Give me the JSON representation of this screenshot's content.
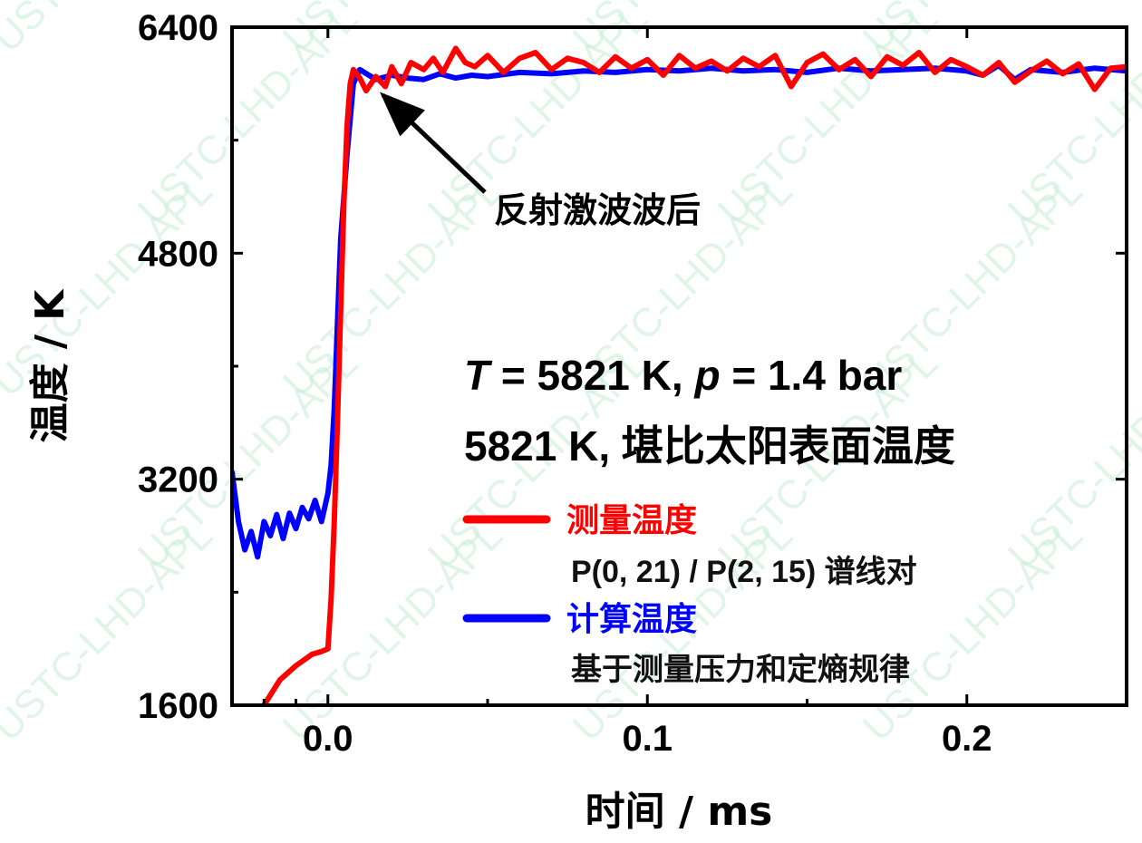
{
  "watermark": "USTC-LHD-APL",
  "chart_data": {
    "type": "line",
    "xlabel": "时间 / ms",
    "ylabel": "温度 / K",
    "xlim": [
      -0.03,
      0.25
    ],
    "ylim": [
      1600,
      6400
    ],
    "xticks": [
      0.0,
      0.1,
      0.2
    ],
    "xtick_labels": [
      "0.0",
      "0.1",
      "0.2"
    ],
    "yticks": [
      1600,
      3200,
      4800,
      6400
    ],
    "ytick_labels": [
      "1600",
      "3200",
      "4800",
      "6400"
    ],
    "grid": false,
    "legend_position": "lower-right",
    "annotations": {
      "arrow_text": "反射激波波后",
      "arrow_target": [
        0.015,
        5970
      ],
      "condition_line1_var1": "T",
      "condition_line1_mid": " = 5821 K, ",
      "condition_line1_var2": "p",
      "condition_line1_end": " = 1.4 bar",
      "condition_line2": "5821 K, 堪比太阳表面温度"
    },
    "series": [
      {
        "name": "测量温度",
        "note": "P(0, 21) / P(2, 15) 谱线对",
        "color": "#ff0000",
        "x": [
          -0.02,
          -0.015,
          -0.01,
          -0.005,
          -0.002,
          0.0,
          0.001,
          0.002,
          0.003,
          0.004,
          0.005,
          0.006,
          0.007,
          0.008,
          0.01,
          0.012,
          0.015,
          0.018,
          0.02,
          0.023,
          0.026,
          0.03,
          0.033,
          0.036,
          0.04,
          0.043,
          0.046,
          0.05,
          0.055,
          0.06,
          0.065,
          0.07,
          0.075,
          0.08,
          0.085,
          0.09,
          0.095,
          0.1,
          0.105,
          0.11,
          0.115,
          0.12,
          0.125,
          0.13,
          0.135,
          0.14,
          0.145,
          0.15,
          0.155,
          0.16,
          0.165,
          0.17,
          0.175,
          0.18,
          0.185,
          0.19,
          0.195,
          0.2,
          0.205,
          0.21,
          0.215,
          0.22,
          0.225,
          0.23,
          0.235,
          0.24,
          0.245,
          0.25
        ],
        "y": [
          1600,
          1780,
          1880,
          1960,
          1980,
          2000,
          2350,
          2900,
          3600,
          4400,
          5150,
          5700,
          6000,
          6100,
          6040,
          5950,
          6050,
          5980,
          6120,
          6000,
          6150,
          6100,
          6180,
          6080,
          6250,
          6150,
          6120,
          6200,
          6080,
          6180,
          6220,
          6100,
          6180,
          6150,
          6080,
          6190,
          6110,
          6170,
          6060,
          6200,
          6110,
          6160,
          6090,
          6180,
          6120,
          6200,
          5980,
          6150,
          6210,
          6100,
          6170,
          6050,
          6190,
          6130,
          6220,
          6080,
          6170,
          6120,
          6060,
          6150,
          6010,
          6090,
          6160,
          6070,
          6140,
          5960,
          6110,
          6120
        ]
      },
      {
        "name": "计算温度",
        "note": "基于测量压力和定熵规律",
        "color": "#0000ff",
        "x": [
          -0.03,
          -0.028,
          -0.026,
          -0.024,
          -0.022,
          -0.02,
          -0.018,
          -0.016,
          -0.014,
          -0.012,
          -0.01,
          -0.008,
          -0.006,
          -0.004,
          -0.002,
          0.0,
          0.001,
          0.002,
          0.003,
          0.004,
          0.006,
          0.008,
          0.01,
          0.015,
          0.02,
          0.025,
          0.03,
          0.035,
          0.04,
          0.045,
          0.05,
          0.06,
          0.07,
          0.08,
          0.09,
          0.1,
          0.11,
          0.12,
          0.13,
          0.14,
          0.15,
          0.16,
          0.17,
          0.18,
          0.19,
          0.2,
          0.205,
          0.21,
          0.215,
          0.22,
          0.23,
          0.24,
          0.25
        ],
        "y": [
          3250,
          2900,
          2700,
          2830,
          2650,
          2900,
          2800,
          2950,
          2780,
          2960,
          2850,
          3000,
          2920,
          3050,
          2900,
          3100,
          3300,
          3700,
          4300,
          4900,
          5500,
          6000,
          6100,
          6030,
          6060,
          6040,
          6030,
          6070,
          6040,
          6060,
          6050,
          6080,
          6070,
          6090,
          6080,
          6100,
          6090,
          6110,
          6090,
          6100,
          6080,
          6110,
          6090,
          6100,
          6110,
          6090,
          6060,
          6130,
          6030,
          6100,
          6080,
          6110,
          6090
        ]
      }
    ]
  }
}
